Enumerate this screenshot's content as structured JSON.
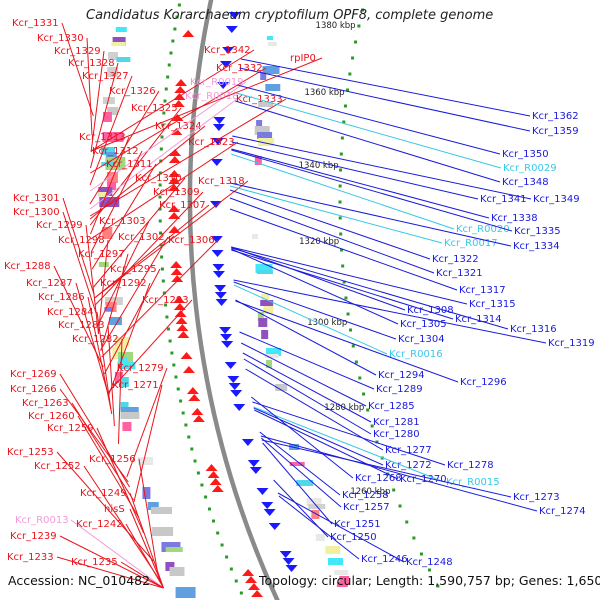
{
  "header": {
    "title": "Candidatus Korarchaeum cryptofilum OPF8, complete genome"
  },
  "footer": {
    "accession": "Accession: NC_010482",
    "summary": "Topology: circular; Length: 1,590,757 bp; Genes: 1,650"
  },
  "colors": {
    "forward_label": "#e8141c",
    "reverse_label": "#1a1adc",
    "rna_forward_label": "#f09cd8",
    "rna_reverse_label": "#38c8e8",
    "backbone": "#8a8a8a",
    "forward_arrow": "#ff1a1a",
    "reverse_arrow": "#1a1aff",
    "tick": "#2a9a2a"
  },
  "kbp_markers": [
    "1380 kbp",
    "1360 kbp",
    "1340 kbp",
    "1320 kbp",
    "1300 kbp",
    "1280 kbp",
    "1260 kbp"
  ],
  "left_labels": [
    {
      "text": "Kcr_1331",
      "strand": "fwd"
    },
    {
      "text": "Kcr_1330",
      "strand": "fwd"
    },
    {
      "text": "Kcr_1329",
      "strand": "fwd"
    },
    {
      "text": "Kcr_1328",
      "strand": "fwd"
    },
    {
      "text": "Kcr_1327",
      "strand": "fwd"
    },
    {
      "text": "Kcr_1326",
      "strand": "fwd"
    },
    {
      "text": "Kcr_1325",
      "strand": "fwd"
    },
    {
      "text": "Kcr_1324",
      "strand": "fwd"
    },
    {
      "text": "Kcr_1323",
      "strand": "fwd"
    },
    {
      "text": "Kcr_1342",
      "strand": "fwd"
    },
    {
      "text": "Kcr_1332",
      "strand": "fwd"
    },
    {
      "text": "Kcr_R0019",
      "strand": "rna"
    },
    {
      "text": "Kcr_R0018",
      "strand": "rna"
    },
    {
      "text": "Kcr_1333",
      "strand": "fwd"
    },
    {
      "text": "rpIP0",
      "strand": "fwd"
    },
    {
      "text": "Kcr_1313",
      "strand": "fwd"
    },
    {
      "text": "Kcr_1312",
      "strand": "fwd"
    },
    {
      "text": "Kcr_1311",
      "strand": "fwd"
    },
    {
      "text": "Kcr_1310",
      "strand": "fwd"
    },
    {
      "text": "Kcr_1309",
      "strand": "fwd"
    },
    {
      "text": "Kcr_1318",
      "strand": "fwd"
    },
    {
      "text": "Kcr_1307",
      "strand": "fwd"
    },
    {
      "text": "Kcr_1301",
      "strand": "fwd"
    },
    {
      "text": "Kcr_1300",
      "strand": "fwd"
    },
    {
      "text": "Kcr_1303",
      "strand": "fwd"
    },
    {
      "text": "Kcr_1299",
      "strand": "fwd"
    },
    {
      "text": "Kcr_1302",
      "strand": "fwd"
    },
    {
      "text": "Kcr_1306",
      "strand": "fwd"
    },
    {
      "text": "Kcr_1298",
      "strand": "fwd"
    },
    {
      "text": "Kcr_1297",
      "strand": "fwd"
    },
    {
      "text": "Kcr_1288",
      "strand": "fwd"
    },
    {
      "text": "Kcr_1295",
      "strand": "fwd"
    },
    {
      "text": "Kcr_1287",
      "strand": "fwd"
    },
    {
      "text": "Kcr_1292",
      "strand": "fwd"
    },
    {
      "text": "Kcr_1286",
      "strand": "fwd"
    },
    {
      "text": "Kcr_1293",
      "strand": "fwd"
    },
    {
      "text": "Kcr_1284",
      "strand": "fwd"
    },
    {
      "text": "Kcr_1283",
      "strand": "fwd"
    },
    {
      "text": "Kcr_1282",
      "strand": "fwd"
    },
    {
      "text": "Kcr_1279",
      "strand": "fwd"
    },
    {
      "text": "Kcr_1269",
      "strand": "fwd"
    },
    {
      "text": "Kcr_1271",
      "strand": "fwd"
    },
    {
      "text": "Kcr_1266",
      "strand": "fwd"
    },
    {
      "text": "Kcr_1263",
      "strand": "fwd"
    },
    {
      "text": "Kcr_1260",
      "strand": "fwd"
    },
    {
      "text": "Kcr_1259",
      "strand": "fwd"
    },
    {
      "text": "Kcr_1253",
      "strand": "fwd"
    },
    {
      "text": "Kcr_1256",
      "strand": "fwd"
    },
    {
      "text": "Kcr_1252",
      "strand": "fwd"
    },
    {
      "text": "Kcr_1249",
      "strand": "fwd"
    },
    {
      "text": "hisS",
      "strand": "fwd"
    },
    {
      "text": "Kcr_R0013",
      "strand": "rna"
    },
    {
      "text": "Kcr_1242",
      "strand": "fwd"
    },
    {
      "text": "Kcr_1239",
      "strand": "fwd"
    },
    {
      "text": "Kcr_1233",
      "strand": "fwd"
    },
    {
      "text": "Kcr_1235",
      "strand": "fwd"
    }
  ],
  "right_labels": [
    {
      "text": "Kcr_1362",
      "strand": "rev"
    },
    {
      "text": "Kcr_1359",
      "strand": "rev"
    },
    {
      "text": "Kcr_1350",
      "strand": "rev"
    },
    {
      "text": "Kcr_R0029",
      "strand": "rna"
    },
    {
      "text": "Kcr_1348",
      "strand": "rev"
    },
    {
      "text": "Kcr_1341",
      "strand": "rev"
    },
    {
      "text": "Kcr_1349",
      "strand": "rev"
    },
    {
      "text": "Kcr_1338",
      "strand": "rev"
    },
    {
      "text": "Kcr_R0020",
      "strand": "rna"
    },
    {
      "text": "Kcr_1335",
      "strand": "rev"
    },
    {
      "text": "Kcr_R0017",
      "strand": "rna"
    },
    {
      "text": "Kcr_1334",
      "strand": "rev"
    },
    {
      "text": "Kcr_1322",
      "strand": "rev"
    },
    {
      "text": "Kcr_1321",
      "strand": "rev"
    },
    {
      "text": "Kcr_1317",
      "strand": "rev"
    },
    {
      "text": "Kcr_1315",
      "strand": "rev"
    },
    {
      "text": "Kcr_1308",
      "strand": "rev"
    },
    {
      "text": "Kcr_1314",
      "strand": "rev"
    },
    {
      "text": "Kcr_1305",
      "strand": "rev"
    },
    {
      "text": "Kcr_1316",
      "strand": "rev"
    },
    {
      "text": "Kcr_1304",
      "strand": "rev"
    },
    {
      "text": "Kcr_1319",
      "strand": "rev"
    },
    {
      "text": "Kcr_R0016",
      "strand": "rna"
    },
    {
      "text": "Kcr_1294",
      "strand": "rev"
    },
    {
      "text": "Kcr_1296",
      "strand": "rev"
    },
    {
      "text": "Kcr_1289",
      "strand": "rev"
    },
    {
      "text": "Kcr_1285",
      "strand": "rev"
    },
    {
      "text": "Kcr_1281",
      "strand": "rev"
    },
    {
      "text": "Kcr_1280",
      "strand": "rev"
    },
    {
      "text": "Kcr_1277",
      "strand": "rev"
    },
    {
      "text": "Kcr_1272",
      "strand": "rev"
    },
    {
      "text": "Kcr_1278",
      "strand": "rev"
    },
    {
      "text": "Kcr_1270",
      "strand": "rev"
    },
    {
      "text": "Kcr_R0015",
      "strand": "rna"
    },
    {
      "text": "Kcr_1268",
      "strand": "rev"
    },
    {
      "text": "Kcr_1273",
      "strand": "rev"
    },
    {
      "text": "Kcr_1258",
      "strand": "rev"
    },
    {
      "text": "Kcr_1257",
      "strand": "rev"
    },
    {
      "text": "Kcr_1274",
      "strand": "rev"
    },
    {
      "text": "Kcr_1251",
      "strand": "rev"
    },
    {
      "text": "Kcr_1250",
      "strand": "rev"
    },
    {
      "text": "Kcr_1246",
      "strand": "rev"
    },
    {
      "text": "Kcr_1248",
      "strand": "rev"
    }
  ]
}
